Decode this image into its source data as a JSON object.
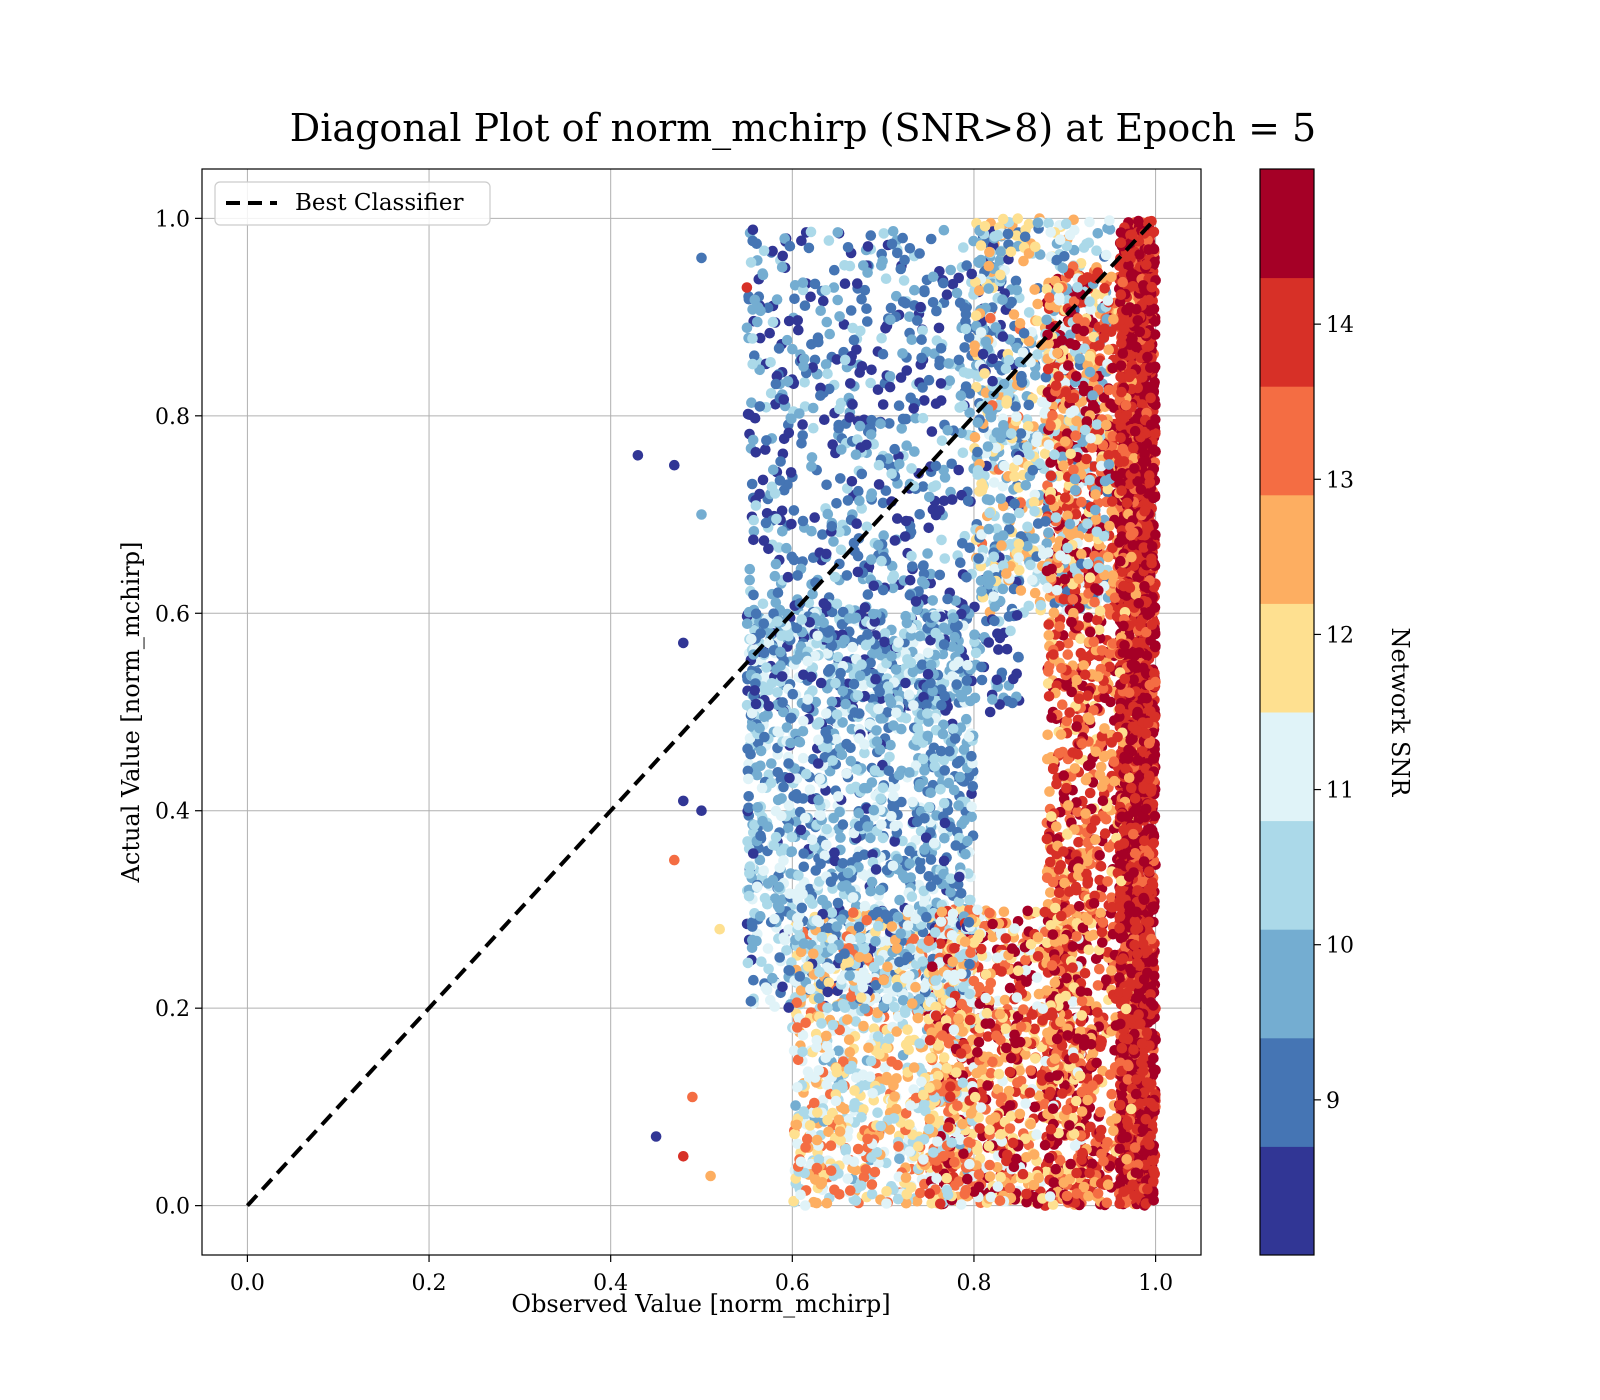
{
  "chart_data": {
    "type": "scatter",
    "title": "Diagonal Plot of norm_mchirp (SNR>8) at Epoch = 5",
    "xlabel": "Observed Value [norm_mchirp]",
    "ylabel": "Actual Value [norm_mchirp]",
    "xlim": [
      -0.05,
      1.05
    ],
    "ylim": [
      -0.05,
      1.05
    ],
    "xticks": [
      0.0,
      0.2,
      0.4,
      0.6,
      0.8,
      1.0
    ],
    "yticks": [
      0.0,
      0.2,
      0.4,
      0.6,
      0.8,
      1.0
    ],
    "xtick_labels": [
      "0.0",
      "0.2",
      "0.4",
      "0.6",
      "0.8",
      "1.0"
    ],
    "ytick_labels": [
      "0.0",
      "0.2",
      "0.4",
      "0.6",
      "0.8",
      "1.0"
    ],
    "grid": true,
    "legend": {
      "placement": "top-left",
      "entries": [
        {
          "label": "Best Classifier",
          "style": "dashed",
          "color": "#000000"
        }
      ]
    },
    "reference_line": {
      "name": "Best Classifier",
      "x": [
        0.0,
        1.0
      ],
      "y": [
        0.0,
        1.0
      ]
    },
    "colorbar": {
      "label": "Network SNR",
      "range": [
        8.0,
        15.0
      ],
      "ticks": [
        9,
        10,
        11,
        12,
        13,
        14
      ],
      "tick_labels": [
        "9",
        "10",
        "11",
        "12",
        "13",
        "14"
      ],
      "colors": [
        "#313695",
        "#4575b4",
        "#74add1",
        "#abd9e9",
        "#e0f3f8",
        "#fee090",
        "#fdae61",
        "#f46d43",
        "#d73027",
        "#a50026"
      ]
    },
    "point_clouds": [
      {
        "x_range": [
          0.96,
          1.0
        ],
        "y_range": [
          0.0,
          1.0
        ],
        "snr_range": [
          13.5,
          15.0
        ],
        "count": 2400
      },
      {
        "x_range": [
          0.88,
          0.98
        ],
        "y_range": [
          0.0,
          0.95
        ],
        "snr_range": [
          12.0,
          15.0
        ],
        "count": 1500
      },
      {
        "x_range": [
          0.75,
          0.92
        ],
        "y_range": [
          0.0,
          0.3
        ],
        "snr_range": [
          11.0,
          15.0
        ],
        "count": 1000
      },
      {
        "x_range": [
          0.6,
          0.8
        ],
        "y_range": [
          0.0,
          0.3
        ],
        "snr_range": [
          10.0,
          13.5
        ],
        "count": 900
      },
      {
        "x_range": [
          0.55,
          0.8
        ],
        "y_range": [
          0.2,
          0.6
        ],
        "snr_range": [
          8.5,
          11.5
        ],
        "count": 1400
      },
      {
        "x_range": [
          0.55,
          0.85
        ],
        "y_range": [
          0.5,
          0.99
        ],
        "snr_range": [
          8.0,
          10.5
        ],
        "count": 1000
      },
      {
        "x_range": [
          0.8,
          0.95
        ],
        "y_range": [
          0.6,
          1.0
        ],
        "snr_range": [
          9.0,
          13.0
        ],
        "count": 700
      }
    ],
    "outliers": [
      {
        "x": 0.43,
        "y": 0.76,
        "snr": 8.2
      },
      {
        "x": 0.5,
        "y": 0.96,
        "snr": 9.3
      },
      {
        "x": 0.47,
        "y": 0.75,
        "snr": 8.3
      },
      {
        "x": 0.48,
        "y": 0.57,
        "snr": 8.4
      },
      {
        "x": 0.45,
        "y": 0.07,
        "snr": 8.6
      },
      {
        "x": 0.48,
        "y": 0.41,
        "snr": 8.2
      },
      {
        "x": 0.5,
        "y": 0.4,
        "snr": 8.3
      },
      {
        "x": 0.5,
        "y": 0.7,
        "snr": 9.8
      },
      {
        "x": 0.55,
        "y": 0.93,
        "snr": 14.2
      },
      {
        "x": 0.47,
        "y": 0.35,
        "snr": 13.2
      },
      {
        "x": 0.48,
        "y": 0.05,
        "snr": 14.0
      },
      {
        "x": 0.49,
        "y": 0.11,
        "snr": 13.1
      },
      {
        "x": 0.51,
        "y": 0.03,
        "snr": 12.5
      },
      {
        "x": 0.52,
        "y": 0.28,
        "snr": 12.0
      }
    ]
  }
}
